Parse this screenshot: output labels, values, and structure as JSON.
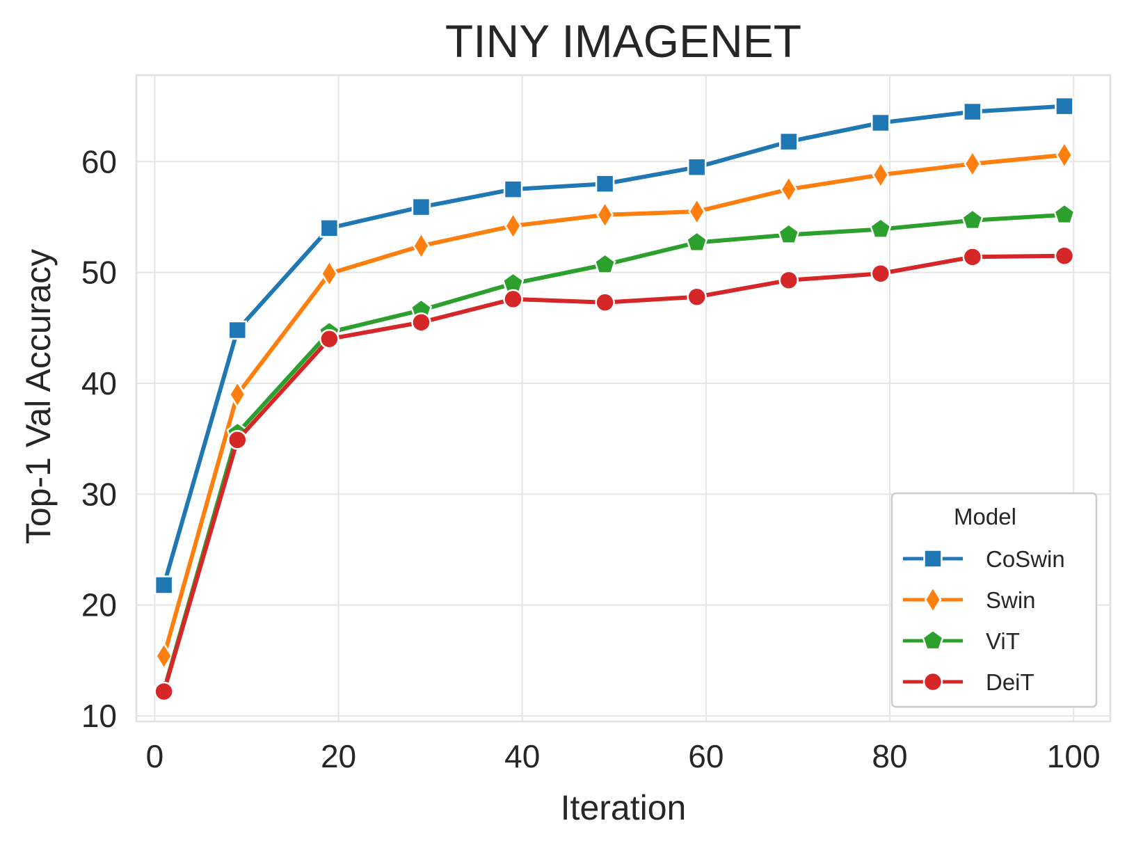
{
  "chart_data": {
    "type": "line",
    "title": "TINY IMAGENET",
    "xlabel": "Iteration",
    "ylabel": "Top-1 Val Accuracy",
    "xlim": [
      -2,
      104
    ],
    "ylim": [
      9.5,
      67.8
    ],
    "xticks": [
      0,
      20,
      40,
      60,
      80,
      100
    ],
    "yticks": [
      10,
      20,
      30,
      40,
      50,
      60
    ],
    "grid": true,
    "legend": {
      "title": "Model",
      "position": "lower-right"
    },
    "x": [
      1,
      9,
      19,
      29,
      39,
      49,
      59,
      69,
      79,
      89,
      99
    ],
    "series": [
      {
        "name": "CoSwin",
        "color": "#1f77b4",
        "marker": "square",
        "values": [
          21.8,
          44.8,
          54.0,
          55.9,
          57.5,
          58.0,
          59.5,
          61.8,
          63.5,
          64.5,
          65.0
        ]
      },
      {
        "name": "Swin",
        "color": "#ff7f0e",
        "marker": "thin-diamond",
        "values": [
          15.4,
          39.0,
          49.9,
          52.4,
          54.2,
          55.2,
          55.5,
          57.5,
          58.8,
          59.8,
          60.6
        ]
      },
      {
        "name": "ViT",
        "color": "#2ca02c",
        "marker": "pentagon",
        "values": [
          12.3,
          35.5,
          44.6,
          46.6,
          49.0,
          50.7,
          52.7,
          53.4,
          53.9,
          54.7,
          55.2
        ]
      },
      {
        "name": "DeiT",
        "color": "#d62728",
        "marker": "circle",
        "values": [
          12.2,
          34.9,
          44.0,
          45.5,
          47.6,
          47.3,
          47.8,
          49.3,
          49.9,
          51.4,
          51.5
        ]
      }
    ]
  }
}
